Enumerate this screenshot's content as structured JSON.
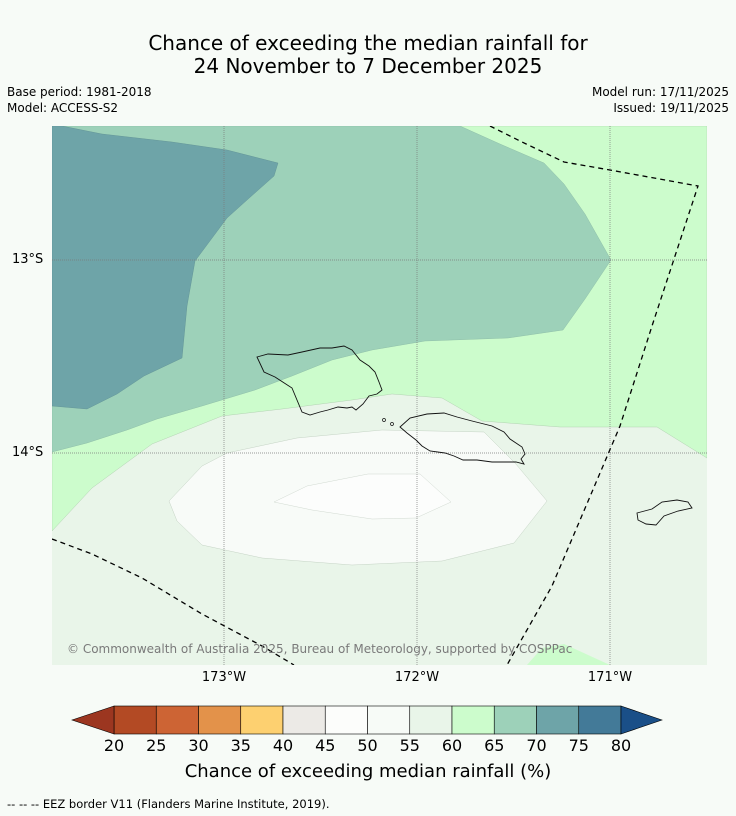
{
  "title_line1": "Chance of exceeding the median rainfall for",
  "title_line2": "24 November to 7 December 2025",
  "base_period": "Base period: 1981-2018",
  "model": "Model: ACCESS-S2",
  "model_run": "Model run: 17/11/2025",
  "issued": "Issued: 19/11/2025",
  "lat_labels": [
    "13°S",
    "14°S"
  ],
  "lon_labels": [
    "173°W",
    "172°W",
    "171°W"
  ],
  "copyright": "© Commonwealth of Australia 2025, Bureau of Meteorology, supported by COSPPac",
  "colorbar": {
    "ticks": [
      "20",
      "25",
      "30",
      "35",
      "40",
      "45",
      "50",
      "55",
      "60",
      "65",
      "70",
      "75",
      "80"
    ],
    "colors": [
      "#b34a24",
      "#cd6434",
      "#e3924a",
      "#fdd070",
      "#eceae6",
      "#fcfdfb",
      "#f7fbf7",
      "#e9f5e9",
      "#ccfccc",
      "#9dd1b9",
      "#6ea4a8",
      "#437a98"
    ],
    "under_color": "#9c3620",
    "over_color": "#1a4f88",
    "title": "Chance of exceeding median rainfall (%)"
  },
  "legend_footer": "--  --  -- EEZ border V11 (Flanders Marine Institute, 2019)."
}
